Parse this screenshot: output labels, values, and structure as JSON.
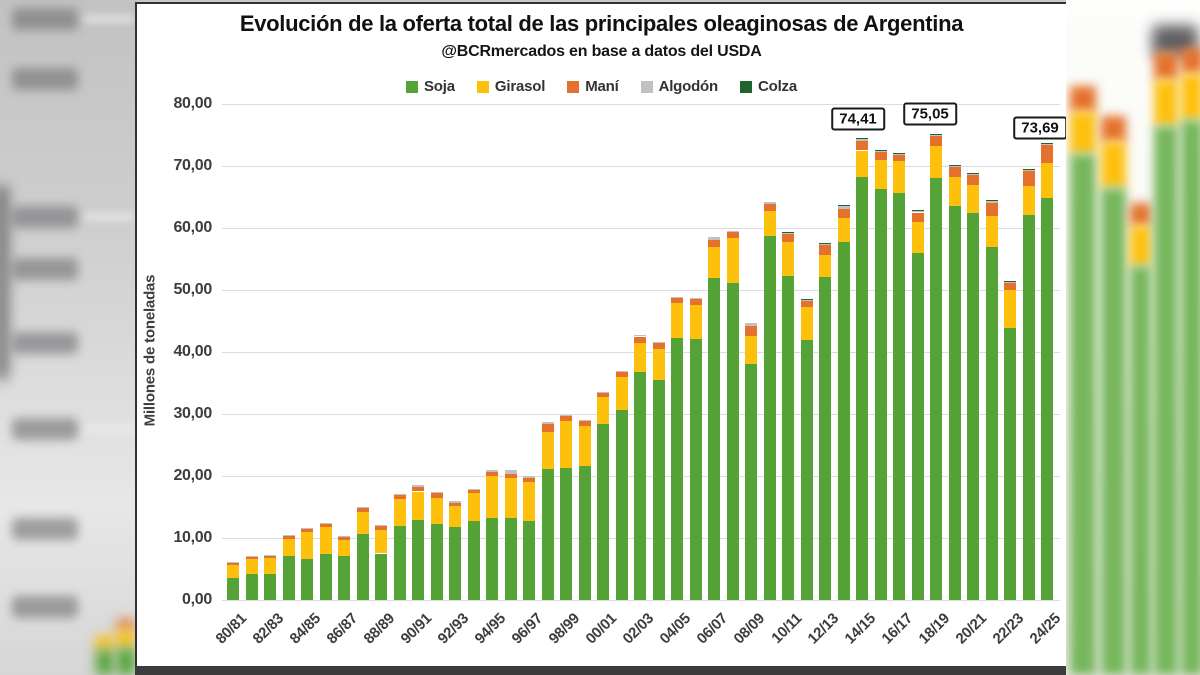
{
  "chart_data": {
    "type": "bar",
    "stacked": true,
    "title": "Evolución de la oferta total de las principales oleaginosas de Argentina",
    "subtitle": "@BCRmercados en base a datos del USDA",
    "ylabel": "Millones de toneladas",
    "ylim": [
      0,
      80
    ],
    "ytick_step": 10,
    "ytick_labels": [
      "0,00",
      "10,00",
      "20,00",
      "30,00",
      "40,00",
      "50,00",
      "60,00",
      "70,00",
      "80,00"
    ],
    "grid": "horizontal",
    "legend_position": "top",
    "categories": [
      "80/81",
      "81/82",
      "82/83",
      "83/84",
      "84/85",
      "85/86",
      "86/87",
      "87/88",
      "88/89",
      "89/90",
      "90/91",
      "91/92",
      "92/93",
      "93/94",
      "94/95",
      "95/96",
      "96/97",
      "97/98",
      "98/99",
      "99/00",
      "00/01",
      "01/02",
      "02/03",
      "03/04",
      "04/05",
      "05/06",
      "06/07",
      "07/08",
      "08/09",
      "09/10",
      "10/11",
      "11/12",
      "12/13",
      "13/14",
      "14/15",
      "15/16",
      "16/17",
      "17/18",
      "18/19",
      "19/20",
      "20/21",
      "21/22",
      "22/23",
      "23/24",
      "24/25"
    ],
    "xtick_labels": [
      "80/81",
      "82/83",
      "84/85",
      "86/87",
      "88/89",
      "90/91",
      "92/93",
      "94/95",
      "96/97",
      "98/99",
      "00/01",
      "02/03",
      "04/05",
      "06/07",
      "08/09",
      "10/11",
      "12/13",
      "14/15",
      "16/17",
      "18/19",
      "20/21",
      "22/23",
      "24/25"
    ],
    "series": [
      {
        "name": "Soja",
        "color": "#55A337",
        "values": [
          3.5,
          4.2,
          4.2,
          7.1,
          6.6,
          7.4,
          7.1,
          10.7,
          7.5,
          12.0,
          12.9,
          12.2,
          11.8,
          12.8,
          13.2,
          13.2,
          12.8,
          21.2,
          21.3,
          21.6,
          28.4,
          30.7,
          36.8,
          35.5,
          42.2,
          42.1,
          52.0,
          51.2,
          38.1,
          58.7,
          52.3,
          41.9,
          52.1,
          57.7,
          68.3,
          66.3,
          65.6,
          55.9,
          68.1,
          63.5,
          62.4,
          57.0,
          43.8,
          62.1,
          64.8
        ]
      },
      {
        "name": "Girasol",
        "color": "#FDC00D",
        "values": [
          2.1,
          2.4,
          2.6,
          2.8,
          4.4,
          4.4,
          2.6,
          3.5,
          3.8,
          4.3,
          4.6,
          4.3,
          3.4,
          4.4,
          6.8,
          6.4,
          6.3,
          5.9,
          7.6,
          6.5,
          4.3,
          5.2,
          4.7,
          5.0,
          5.7,
          5.5,
          5.0,
          7.2,
          4.5,
          4.0,
          5.5,
          5.4,
          3.5,
          3.9,
          4.2,
          4.7,
          5.2,
          5.1,
          5.2,
          4.8,
          4.6,
          4.9,
          6.2,
          4.6,
          5.7
        ]
      },
      {
        "name": "Maní",
        "color": "#E4722C",
        "values": [
          0.3,
          0.4,
          0.3,
          0.4,
          0.4,
          0.5,
          0.5,
          0.6,
          0.6,
          0.6,
          0.8,
          0.8,
          0.5,
          0.5,
          0.6,
          0.8,
          0.6,
          1.3,
          0.7,
          0.7,
          0.7,
          0.8,
          1.0,
          0.9,
          0.8,
          0.9,
          1.1,
          0.9,
          1.6,
          1.2,
          1.2,
          1.0,
          1.6,
          1.5,
          1.6,
          1.3,
          1.0,
          1.5,
          1.5,
          1.5,
          1.5,
          2.2,
          1.2,
          2.5,
          2.9
        ]
      },
      {
        "name": "Algodón",
        "color": "#C1C1C1",
        "values": [
          0.1,
          0.1,
          0.1,
          0.1,
          0.1,
          0.1,
          0.1,
          0.1,
          0.1,
          0.1,
          0.2,
          0.2,
          0.2,
          0.2,
          0.4,
          0.5,
          0.3,
          0.3,
          0.2,
          0.2,
          0.2,
          0.2,
          0.2,
          0.1,
          0.2,
          0.2,
          0.5,
          0.2,
          0.4,
          0.3,
          0.2,
          0.1,
          0.3,
          0.4,
          0.21,
          0.2,
          0.1,
          0.3,
          0.15,
          0.2,
          0.2,
          0.2,
          0.1,
          0.2,
          0.19
        ]
      },
      {
        "name": "Colza",
        "color": "#1E642F",
        "values": [
          0,
          0,
          0,
          0,
          0,
          0,
          0,
          0,
          0,
          0,
          0,
          0,
          0,
          0,
          0,
          0,
          0,
          0,
          0,
          0,
          0,
          0,
          0,
          0,
          0,
          0,
          0,
          0,
          0,
          0,
          0.1,
          0.1,
          0.1,
          0.1,
          0.1,
          0.1,
          0.1,
          0.1,
          0.1,
          0.1,
          0.1,
          0.1,
          0.1,
          0.1,
          0.1
        ]
      }
    ],
    "annotations": [
      {
        "category": "14/15",
        "text": "74,41"
      },
      {
        "category": "18/19",
        "text": "75,05"
      },
      {
        "category": "24/25",
        "text": "73,69"
      }
    ]
  }
}
